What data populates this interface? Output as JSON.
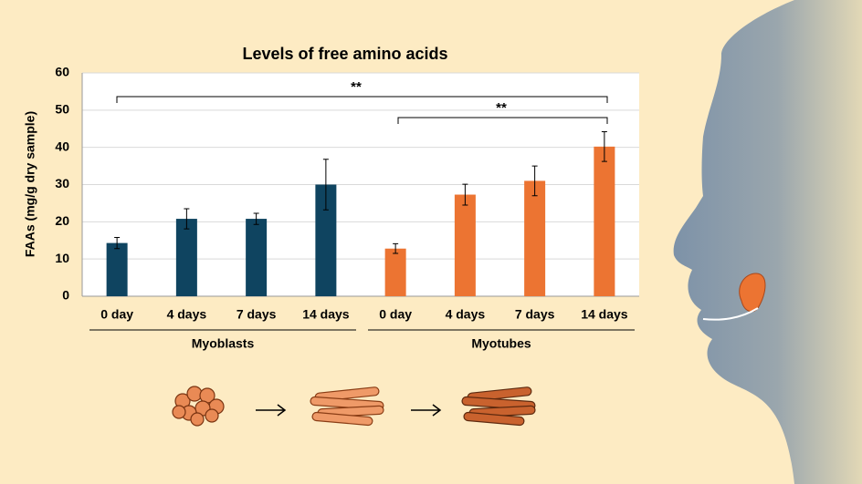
{
  "chart_data": {
    "type": "bar",
    "title": "Levels of free amino acids",
    "y_label": "FAAs (mg/g dry sample)",
    "ylim": [
      0,
      60
    ],
    "yticks": [
      0,
      10,
      20,
      30,
      40,
      50,
      60
    ],
    "grid": true,
    "groups": [
      {
        "name": "Myoblasts",
        "color": "#0f4460",
        "categories": [
          "0 day",
          "4 days",
          "7 days",
          "14 days"
        ],
        "values": [
          14.3,
          20.8,
          20.8,
          30
        ],
        "errors": [
          1.5,
          2.7,
          1.5,
          6.8
        ]
      },
      {
        "name": "Myotubes",
        "color": "#ec7432",
        "categories": [
          "0 day",
          "4 days",
          "7 days",
          "14 days"
        ],
        "values": [
          12.8,
          27.3,
          31,
          40.2
        ],
        "errors": [
          1.3,
          2.8,
          4,
          4
        ]
      }
    ],
    "annotations": [
      "**",
      "**"
    ]
  }
}
